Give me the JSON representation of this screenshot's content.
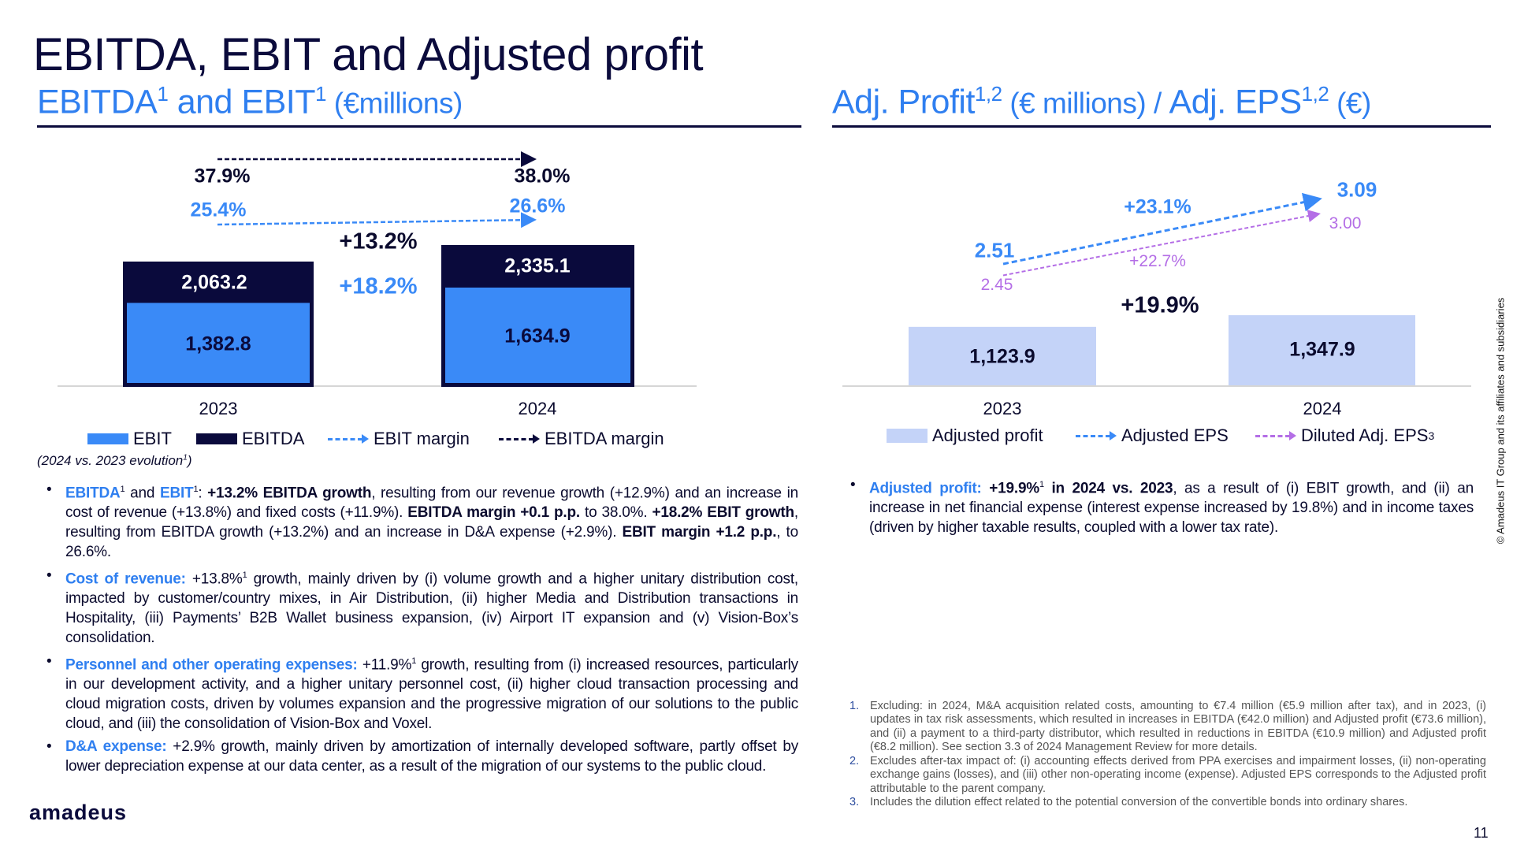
{
  "title": "EBITDA, EBIT and Adjusted profit",
  "left_section": {
    "title_a": "EBITDA",
    "sup_a": "1",
    "title_and": " and EBIT",
    "sup_b": "1",
    "unit": " (€millions)"
  },
  "right_section": {
    "title_a": "Adj. Profit",
    "sup_a": "1,2",
    "unit_a": " (€ millions) / ",
    "title_b": "Adj. EPS",
    "sup_b": "1,2",
    "unit_b": " (€)"
  },
  "colors": {
    "ebit": "#3a8af7",
    "ebitda": "#0a0a3c",
    "adjusted_profit": "#c4d3f8",
    "adjusted_eps": "#3a8af7",
    "diluted_eps": "#b46ee6",
    "accent": "#2f7ff0"
  },
  "chart_data": [
    {
      "type": "bar",
      "stacked": "overlapping",
      "categories": [
        "2023",
        "2024"
      ],
      "series": [
        {
          "name": "EBITDA",
          "values": [
            2063.2,
            2335.1
          ],
          "labels": [
            "2,063.2",
            "2,335.1"
          ]
        },
        {
          "name": "EBIT",
          "values": [
            1382.8,
            1634.9
          ],
          "labels": [
            "1,382.8",
            "1,634.9"
          ]
        }
      ],
      "margins": [
        {
          "name": "EBITDA margin",
          "values": [
            "37.9%",
            "38.0%"
          ]
        },
        {
          "name": "EBIT margin",
          "values": [
            "25.4%",
            "26.6%"
          ]
        }
      ],
      "growth": {
        "ebitda": "+13.2%",
        "ebit": "+18.2%"
      },
      "legend": [
        "EBIT",
        "EBITDA",
        "EBIT margin",
        "EBITDA margin"
      ],
      "legend_position": "bottom",
      "grid": false
    },
    {
      "type": "bar",
      "categories": [
        "2023",
        "2024"
      ],
      "series": [
        {
          "name": "Adjusted profit",
          "values": [
            1123.9,
            1347.9
          ],
          "labels": [
            "1,123.9",
            "1,347.9"
          ]
        }
      ],
      "lines": [
        {
          "name": "Adjusted EPS",
          "values": [
            2.51,
            3.09
          ],
          "labels": [
            "2.51",
            "3.09"
          ],
          "growth": "+23.1%"
        },
        {
          "name": "Diluted Adj. EPS",
          "values": [
            2.45,
            3.0
          ],
          "labels": [
            "2.45",
            "3.00"
          ],
          "growth": "+22.7%"
        }
      ],
      "growth": "+19.9%",
      "legend": [
        "Adjusted profit",
        "Adjusted EPS",
        "Diluted Adj. EPS"
      ],
      "legend_sup": "3",
      "legend_position": "bottom",
      "grid": false
    }
  ],
  "evolution_note": {
    "text": "(2024 vs. 2023 evolution",
    "sup": "1",
    "close": ")"
  },
  "left_bullets": [
    [
      {
        "t": "EBITDA",
        "s": "h"
      },
      {
        "t": "1",
        "s": "sup"
      },
      {
        "t": " and "
      },
      {
        "t": "EBIT",
        "s": "h"
      },
      {
        "t": "1",
        "s": "sup"
      },
      {
        "t": ": "
      },
      {
        "t": "+13.2% EBITDA growth",
        "s": "b"
      },
      {
        "t": ", resulting from our revenue growth (+12.9%) and an increase in cost of revenue (+13.8%) and fixed costs (+11.9%). "
      },
      {
        "t": "EBITDA margin +0.1 p.p.",
        "s": "b"
      },
      {
        "t": " to 38.0%. "
      },
      {
        "t": "+18.2% EBIT growth",
        "s": "b"
      },
      {
        "t": ", resulting from EBITDA growth (+13.2%) and an increase in D&A expense (+2.9%). "
      },
      {
        "t": "EBIT margin +1.2 p.p.",
        "s": "b"
      },
      {
        "t": ", to 26.6%."
      }
    ],
    [
      {
        "t": "Cost of revenue:",
        "s": "h"
      },
      {
        "t": " +13.8%"
      },
      {
        "t": "1",
        "s": "sup"
      },
      {
        "t": " growth, mainly driven by (i) volume growth and a higher unitary distribution cost, impacted by customer/country mixes, in Air Distribution, (ii) higher Media and Distribution transactions in Hospitality, (iii) Payments’ B2B Wallet business expansion, (iv) Airport IT expansion and (v) Vision-Box’s consolidation."
      }
    ],
    [
      {
        "t": "Personnel and other operating expenses:",
        "s": "h"
      },
      {
        "t": " +11.9%"
      },
      {
        "t": "1",
        "s": "sup"
      },
      {
        "t": " growth, resulting from (i) increased resources, particularly in our development activity, and a higher unitary personnel cost, (ii) higher cloud transaction processing and cloud migration costs, driven by volumes expansion and the progressive migration of our solutions to the public cloud, and (iii) the consolidation of Vision-Box and Voxel."
      }
    ],
    [
      {
        "t": "D&A expense:",
        "s": "h"
      },
      {
        "t": " +2.9% growth, mainly driven by amortization of internally developed software, partly offset by lower depreciation expense at our data center, as a result of the migration of our systems to the public cloud."
      }
    ]
  ],
  "right_bullets": [
    [
      {
        "t": "Adjusted profit:",
        "s": "h"
      },
      {
        "t": " +19.9%",
        "s": "b"
      },
      {
        "t": "1",
        "s": "sup"
      },
      {
        "t": " in 2024 vs. 2023",
        "s": "b"
      },
      {
        "t": ", as a result of (i) EBIT growth, and (ii) an increase in net financial expense (interest expense increased by 19.8%) and in income taxes (driven by higher taxable results, coupled with a lower tax rate)."
      }
    ]
  ],
  "footnotes": [
    {
      "num": "1.",
      "text": "Excluding: in 2024, M&A acquisition related costs, amounting to €7.4 million (€5.9 million after tax), and in 2023, (i) updates in tax risk assessments, which resulted in increases in EBITDA (€42.0 million) and Adjusted profit (€73.6 million), and (ii) a payment to a third-party distributor, which resulted in reductions in EBITDA (€10.9 million) and Adjusted profit (€8.2 million). See section 3.3 of 2024 Management Review for more details."
    },
    {
      "num": "2.",
      "text": "Excludes after-tax impact of: (i) accounting effects derived from PPA exercises and impairment losses, (ii) non-operating exchange gains (losses), and (iii) other non-operating income (expense). Adjusted EPS corresponds to the Adjusted profit attributable to the parent company."
    },
    {
      "num": "3.",
      "text": "Includes the dilution effect related to the potential conversion of the convertible bonds into ordinary shares."
    }
  ],
  "copyright": "© Amadeus IT Group and its affiliates and subsidiaries",
  "logo": "amadeus",
  "page_number": "11"
}
